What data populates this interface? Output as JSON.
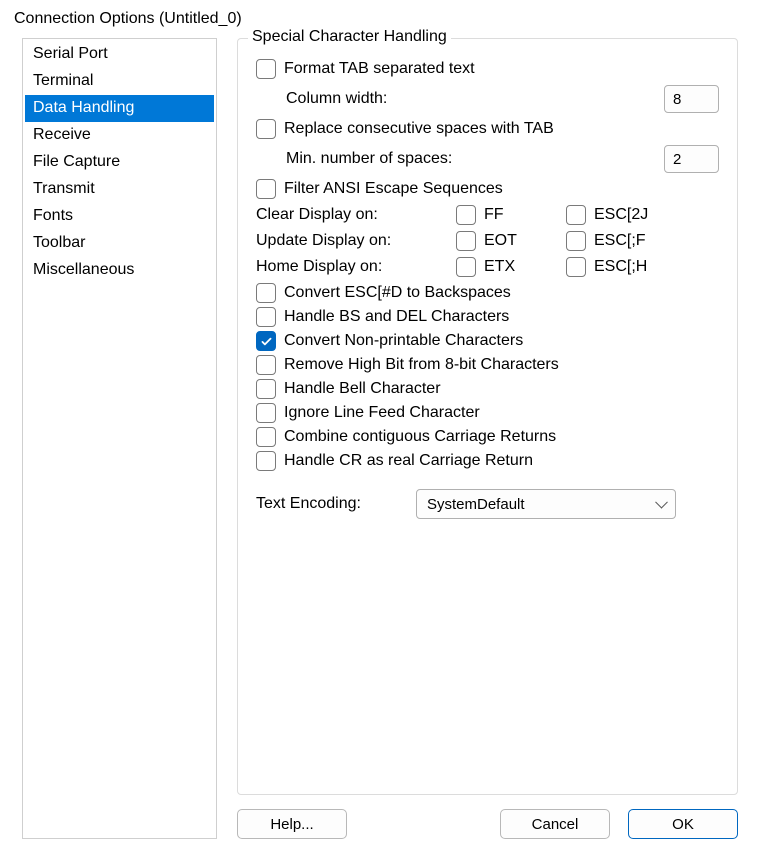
{
  "window": {
    "title": "Connection Options (Untitled_0)"
  },
  "sidebar": {
    "items": [
      {
        "label": "Serial Port",
        "selected": false
      },
      {
        "label": "Terminal",
        "selected": false
      },
      {
        "label": "Data Handling",
        "selected": true
      },
      {
        "label": "Receive",
        "selected": false
      },
      {
        "label": "File Capture",
        "selected": false
      },
      {
        "label": "Transmit",
        "selected": false
      },
      {
        "label": "Fonts",
        "selected": false
      },
      {
        "label": "Toolbar",
        "selected": false
      },
      {
        "label": "Miscellaneous",
        "selected": false
      }
    ]
  },
  "group": {
    "title": "Special Character Handling",
    "format_tab": {
      "label": "Format TAB separated text",
      "checked": false
    },
    "column_width": {
      "label": "Column width:",
      "value": "8"
    },
    "replace_spaces": {
      "label": "Replace consecutive spaces with TAB",
      "checked": false
    },
    "min_spaces": {
      "label": "Min. number of spaces:",
      "value": "2"
    },
    "filter_ansi": {
      "label": "Filter ANSI Escape Sequences",
      "checked": false
    },
    "clear_display": {
      "label": "Clear Display on:",
      "opt1": {
        "label": "FF",
        "checked": false
      },
      "opt2": {
        "label": "ESC[2J",
        "checked": false
      }
    },
    "update_display": {
      "label": "Update Display on:",
      "opt1": {
        "label": "EOT",
        "checked": false
      },
      "opt2": {
        "label": "ESC[;F",
        "checked": false
      }
    },
    "home_display": {
      "label": "Home Display on:",
      "opt1": {
        "label": "ETX",
        "checked": false
      },
      "opt2": {
        "label": "ESC[;H",
        "checked": false
      }
    },
    "convert_esc": {
      "label": "Convert ESC[#D to Backspaces",
      "checked": false
    },
    "handle_bs_del": {
      "label": "Handle BS and DEL Characters",
      "checked": false
    },
    "convert_nonprint": {
      "label": "Convert Non-printable Characters",
      "checked": true
    },
    "remove_highbit": {
      "label": "Remove High Bit from 8-bit Characters",
      "checked": false
    },
    "handle_bell": {
      "label": "Handle Bell Character",
      "checked": false
    },
    "ignore_lf": {
      "label": "Ignore Line Feed Character",
      "checked": false
    },
    "combine_cr": {
      "label": "Combine contiguous Carriage Returns",
      "checked": false
    },
    "handle_cr": {
      "label": "Handle CR as real Carriage Return",
      "checked": false
    },
    "text_encoding": {
      "label": "Text Encoding:",
      "value": "SystemDefault"
    }
  },
  "buttons": {
    "help": "Help...",
    "cancel": "Cancel",
    "ok": "OK"
  }
}
